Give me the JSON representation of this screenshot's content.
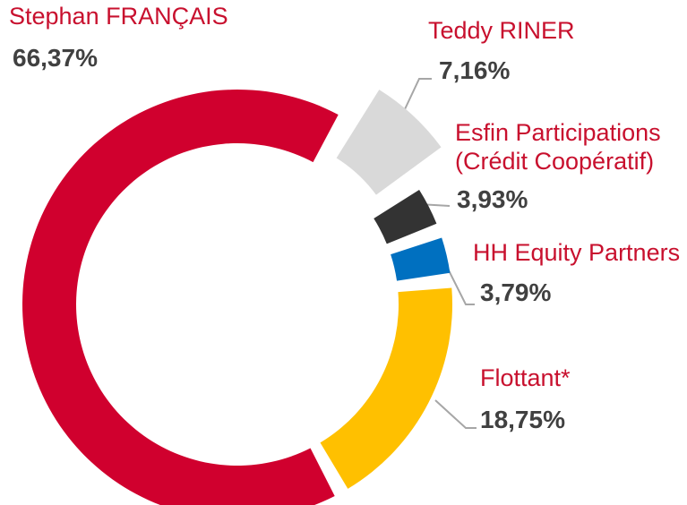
{
  "chart_data": {
    "type": "donut",
    "categories": [
      "Stephan FRANÇAIS",
      "Teddy RINER",
      "Esfin Participations (Crédit Coopératif)",
      "HH Equity Partners",
      "Flottant*"
    ],
    "values": [
      66.37,
      7.16,
      3.93,
      3.79,
      18.75
    ],
    "value_labels": [
      "66,37%",
      "7,16%",
      "3,93%",
      "3,79%",
      "18,75%"
    ],
    "colors": [
      "#d0002e",
      "#d9d9d9",
      "#333333",
      "#0070c0",
      "#ffc000"
    ]
  }
}
